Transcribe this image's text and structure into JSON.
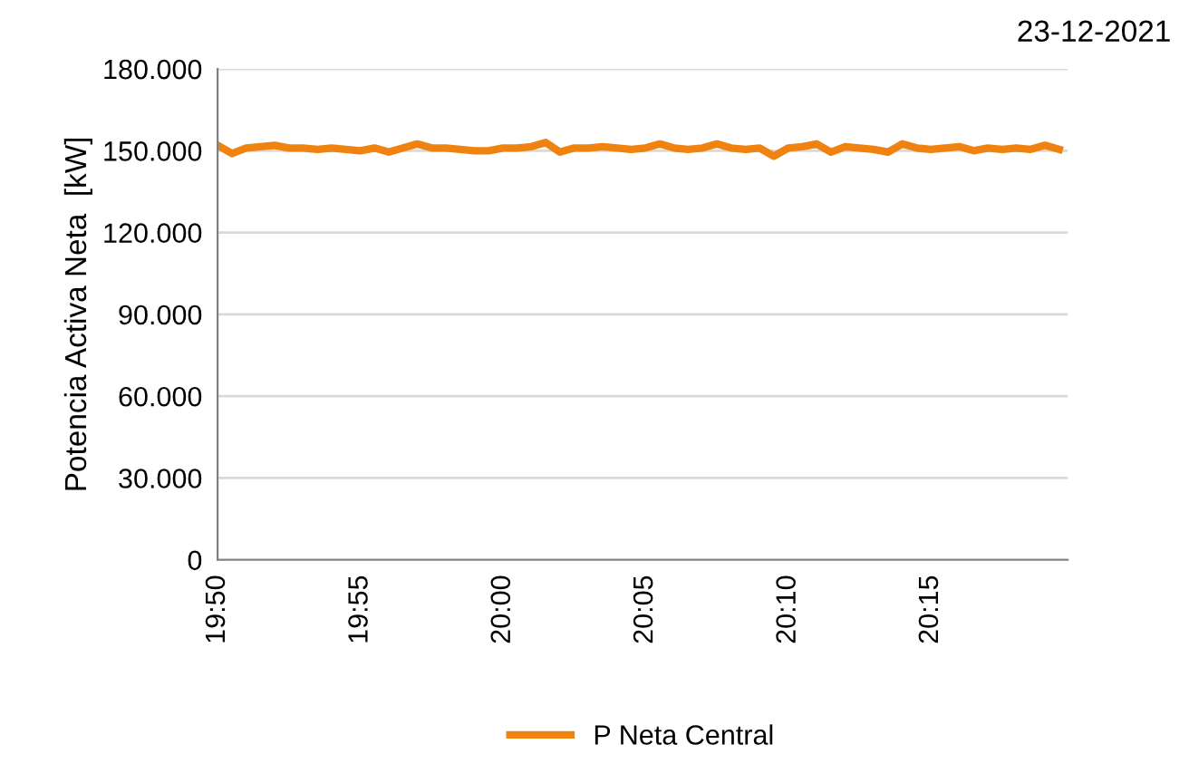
{
  "chart_data": {
    "type": "line",
    "title": "23-12-2021",
    "ylabel": "Potencia Activa Neta  [kW]",
    "x": [
      19.8333,
      19.8417,
      19.85,
      19.8583,
      19.8667,
      19.875,
      19.8833,
      19.8917,
      19.9,
      19.9083,
      19.9167,
      19.925,
      19.9333,
      19.9417,
      19.95,
      19.9583,
      19.9667,
      19.975,
      19.9833,
      19.9917,
      20.0,
      20.0083,
      20.0167,
      20.025,
      20.0333,
      20.0417,
      20.05,
      20.0583,
      20.0667,
      20.075,
      20.0833,
      20.0917,
      20.1,
      20.1083,
      20.1167,
      20.125,
      20.1333,
      20.1417,
      20.15,
      20.1583,
      20.1667,
      20.175,
      20.1833,
      20.1917,
      20.2,
      20.2083,
      20.2167,
      20.225,
      20.2333,
      20.2417,
      20.25,
      20.2583,
      20.2667,
      20.275,
      20.2833,
      20.2917,
      20.3,
      20.3083,
      20.3167,
      20.325
    ],
    "series": [
      {
        "name": "P Neta Central",
        "color": "#f0820f",
        "values": [
          152000,
          149000,
          151000,
          151500,
          152000,
          151000,
          151000,
          150500,
          151000,
          150500,
          150000,
          151000,
          149500,
          151000,
          152500,
          151000,
          151000,
          150500,
          150000,
          150000,
          151000,
          151000,
          151500,
          153000,
          149500,
          151000,
          151000,
          151500,
          151000,
          150500,
          151000,
          152500,
          151000,
          150500,
          151000,
          152500,
          151000,
          150500,
          151000,
          148000,
          151000,
          151500,
          152500,
          149500,
          151500,
          151000,
          150500,
          149500,
          152500,
          151000,
          150500,
          151000,
          151500,
          150000,
          151000,
          150500,
          151000,
          150500,
          152000,
          150500
        ]
      }
    ],
    "xlim": [
      19.8333,
      20.33
    ],
    "xticks": [
      {
        "value": 19.8333,
        "label": "19:50"
      },
      {
        "value": 19.9167,
        "label": "19:55"
      },
      {
        "value": 20.0,
        "label": "20:00"
      },
      {
        "value": 20.0833,
        "label": "20:05"
      },
      {
        "value": 20.1667,
        "label": "20:10"
      },
      {
        "value": 20.25,
        "label": "20:15"
      }
    ],
    "ylim": [
      0,
      180000
    ],
    "yticks": [
      0,
      {
        "value": 30000,
        "label": "30.000"
      },
      {
        "value": 60000,
        "label": "60.000"
      },
      {
        "value": 90000,
        "label": "90.000"
      },
      {
        "value": 120000,
        "label": "120.000"
      },
      {
        "value": 150000,
        "label": "150.000"
      },
      {
        "value": 180000,
        "label": "180.000"
      }
    ],
    "grid": "y",
    "legend": "bottom",
    "marker": "none",
    "line_style": "solid"
  }
}
